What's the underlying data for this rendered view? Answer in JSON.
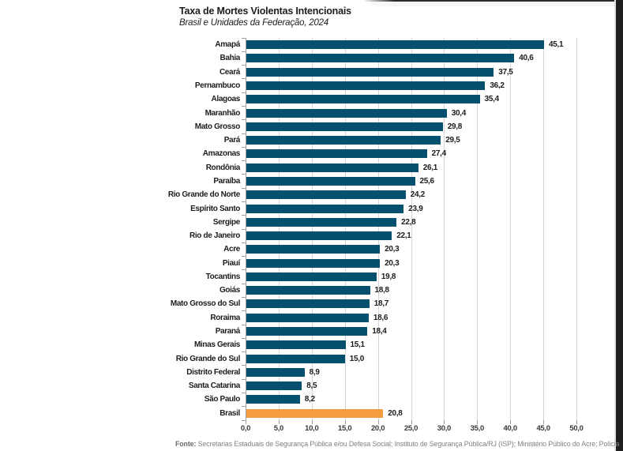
{
  "page": {
    "footer_label": "Fonte:",
    "footer_text": " Secretarias Estaduais de Segurança Pública e/ou Defesa Social; Instituto de Segurança Pública/RJ (ISP); Ministério Público do Acre; Polícia"
  },
  "colors": {
    "bar": "#05506F",
    "highlight": "#F59B42",
    "gridline": "#d6d6d6",
    "axis": "#9e9e9e"
  },
  "chart_data": {
    "type": "bar",
    "orientation": "horizontal",
    "title": "Taxa de Mortes Violentas Intencionais",
    "subtitle": "Brasil e Unidades da Federação, 2024",
    "xlabel": "",
    "ylabel": "",
    "xlim": [
      0,
      50
    ],
    "grid": true,
    "x_tick_labels": [
      "0,0",
      "5,0",
      "10,0",
      "15,0",
      "20,0",
      "25,0",
      "30,0",
      "35,0",
      "40,0",
      "45,0",
      "50,0"
    ],
    "highlight_category": "Brasil",
    "categories": [
      "Amapá",
      "Bahia",
      "Ceará",
      "Pernambuco",
      "Alagoas",
      "Maranhão",
      "Mato Grosso",
      "Pará",
      "Amazonas",
      "Rondônia",
      "Paraíba",
      "Rio Grande do Norte",
      "Espírito Santo",
      "Sergipe",
      "Rio de Janeiro",
      "Acre",
      "Piauí",
      "Tocantins",
      "Goiás",
      "Mato Grosso do Sul",
      "Roraima",
      "Paraná",
      "Minas Gerais",
      "Rio Grande do Sul",
      "Distrito Federal",
      "Santa Catarina",
      "São Paulo",
      "Brasil"
    ],
    "values": [
      45.1,
      40.6,
      37.5,
      36.2,
      35.4,
      30.4,
      29.8,
      29.5,
      27.4,
      26.1,
      25.6,
      24.2,
      23.9,
      22.8,
      22.1,
      20.3,
      20.3,
      19.8,
      18.8,
      18.7,
      18.6,
      18.4,
      15.1,
      15.0,
      8.9,
      8.5,
      8.2,
      20.8
    ],
    "value_labels": [
      "45,1",
      "40,6",
      "37,5",
      "36,2",
      "35,4",
      "30,4",
      "29,8",
      "29,5",
      "27,4",
      "26,1",
      "25,6",
      "24,2",
      "23,9",
      "22,8",
      "22,1",
      "20,3",
      "20,3",
      "19,8",
      "18,8",
      "18,7",
      "18,6",
      "18,4",
      "15,1",
      "15,0",
      "8,9",
      "8,5",
      "8,2",
      "20,8"
    ]
  }
}
